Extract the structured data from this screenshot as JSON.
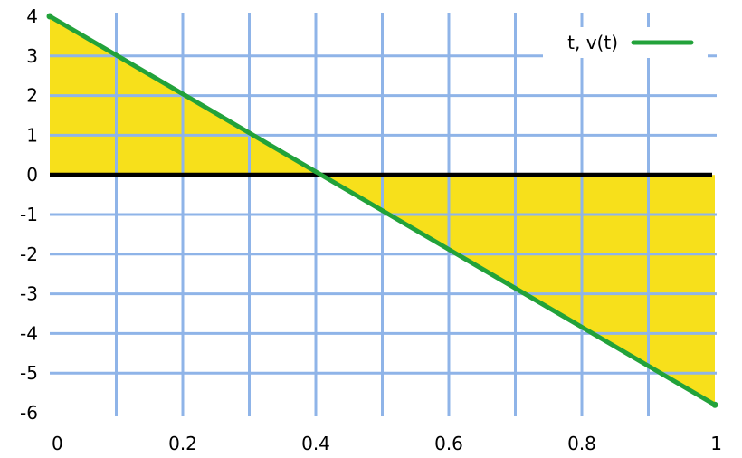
{
  "chart_data": {
    "type": "line",
    "title": "",
    "xlabel": "",
    "ylabel": "",
    "xlim": [
      0,
      1
    ],
    "ylim": [
      -6,
      4
    ],
    "x_ticks": [
      0,
      0.2,
      0.4,
      0.6,
      0.8,
      1
    ],
    "x_tick_labels": [
      "0",
      "0.2",
      "0.4",
      "0.6",
      "0.8",
      "1"
    ],
    "y_ticks": [
      -6,
      -5,
      -4,
      -3,
      -2,
      -1,
      0,
      1,
      2,
      3,
      4
    ],
    "y_tick_labels": [
      "-6",
      "-5",
      "-4",
      "-3",
      "-2",
      "-1",
      "0",
      "1",
      "2",
      "3",
      "4"
    ],
    "grid": true,
    "grid_x": [
      0.1,
      0.2,
      0.3,
      0.4,
      0.5,
      0.6,
      0.7,
      0.8,
      0.9
    ],
    "grid_y": [
      -5,
      -4,
      -3,
      -2,
      -1,
      1,
      2,
      3
    ],
    "grid_color": "#8fb4e8",
    "zero_line": true,
    "legend_position": "top-right",
    "fill_between_curve_and_zero": true,
    "fill_color": "#f7e01b",
    "series": [
      {
        "name": "t, v(t)",
        "color": "#22a23a",
        "x": [
          0,
          1
        ],
        "y": [
          4,
          -5.8
        ]
      }
    ]
  }
}
